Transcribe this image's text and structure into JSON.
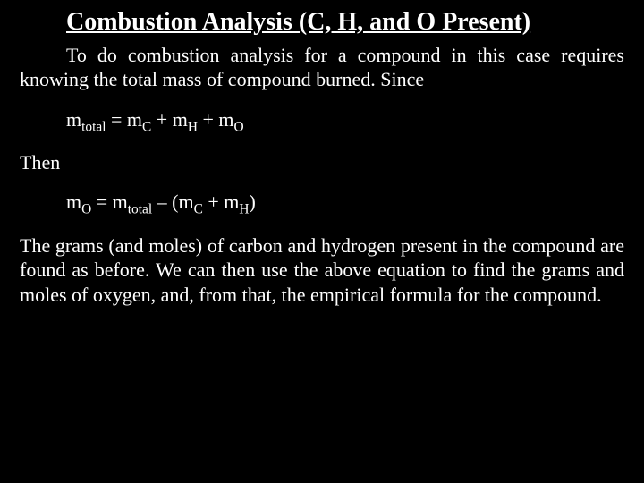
{
  "background_color": "#000000",
  "text_color": "#ffffff",
  "font_family": "Times New Roman",
  "title": {
    "text": "Combustion Analysis (C, H, and O Present)",
    "fontsize": 28,
    "underline": true
  },
  "paragraph1_a": "To do combustion analysis for a compound in this case requires knowing the total mass of compound burned.  Since",
  "equation1": {
    "prefix": "m",
    "sub1": "total",
    "mid1": " = m",
    "sub2": "C",
    "mid2": " + m",
    "sub3": "H",
    "mid3": " + m",
    "sub4": "O"
  },
  "then_label": "Then",
  "equation2": {
    "prefix": "m",
    "sub1": "O",
    "mid1": " = m",
    "sub2": "total",
    "mid2": " – (m",
    "sub3": "C",
    "mid3": " + m",
    "sub4": "H",
    "suffix": ")"
  },
  "paragraph2": "The grams (and moles) of carbon and hydrogen present in the compound are found as before.  We can then use the above equation to find the grams and moles of oxygen, and, from that, the empirical formula for the compound."
}
